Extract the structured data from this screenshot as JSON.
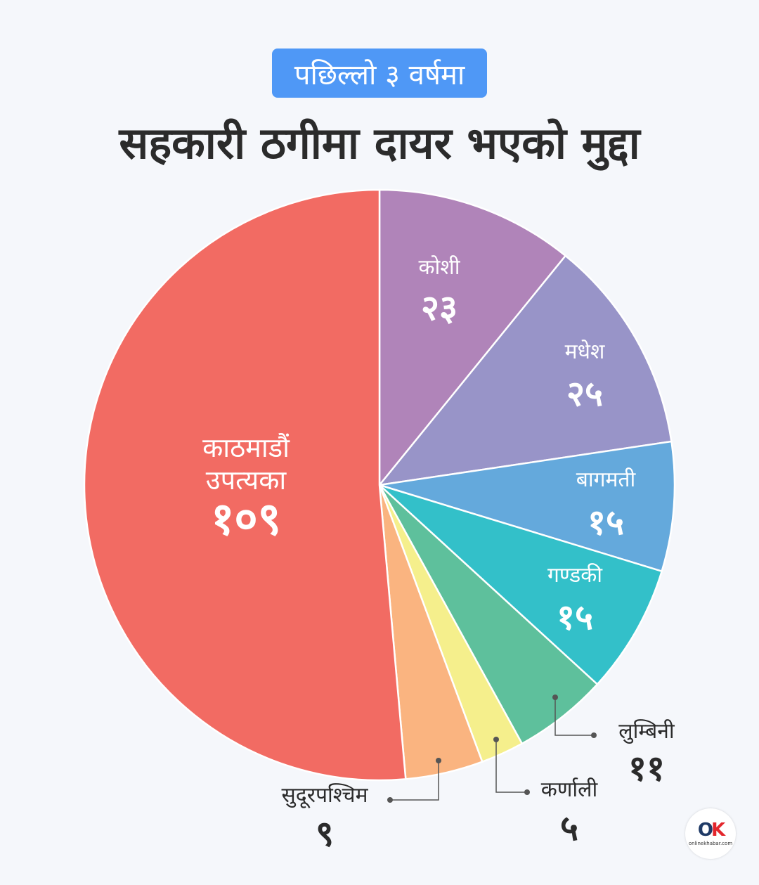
{
  "header": {
    "badge": "पछिल्लो ३ वर्षमा",
    "title": "सहकारी ठगीमा दायर भएको मुद्दा"
  },
  "logo": {
    "mark_o": "O",
    "mark_k": "K",
    "text": "onlinekhabar.com"
  },
  "chart_data": {
    "type": "pie",
    "title": "सहकारी ठगीमा दायर भएको मुद्दा",
    "subtitle": "पछिल्लो ३ वर्षमा",
    "slices": [
      {
        "label": "कोशी",
        "value": 23,
        "display": "२३",
        "color": "#b084b9"
      },
      {
        "label": "मधेश",
        "value": 25,
        "display": "२५",
        "color": "#9894c8"
      },
      {
        "label": "बागमती",
        "value": 15,
        "display": "१५",
        "color": "#64a9dc"
      },
      {
        "label": "गण्डकी",
        "value": 15,
        "display": "१५",
        "color": "#33c0c9"
      },
      {
        "label": "लुम्बिनी",
        "value": 11,
        "display": "११",
        "color": "#5ec09c"
      },
      {
        "label": "कर्णाली",
        "value": 5,
        "display": "५",
        "color": "#f5ef8c"
      },
      {
        "label": "सुदूरपश्चिम",
        "value": 9,
        "display": "९",
        "color": "#fab480"
      },
      {
        "label": "काठमाडौं उपत्यका",
        "value": 109,
        "display": "१०९",
        "color": "#f26b63"
      }
    ]
  }
}
